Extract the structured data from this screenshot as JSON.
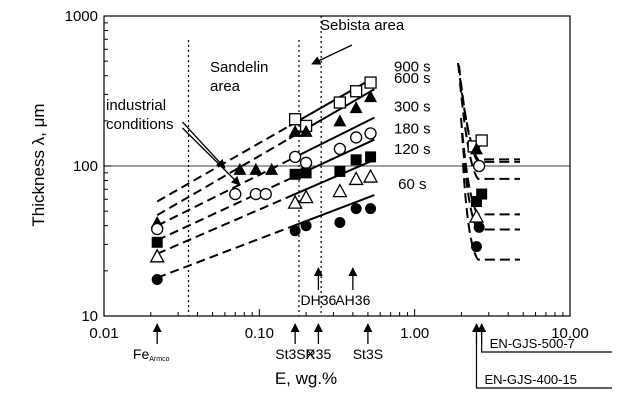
{
  "chart_data": {
    "type": "scatter",
    "xscale": "log",
    "yscale": "log",
    "xlim": [
      0.01,
      10
    ],
    "ylim": [
      10,
      1000
    ],
    "xlabel": "E, wg.%",
    "ylabel": "Thickness λ, μm",
    "x_ticks": [
      "0.01",
      "0.10",
      "1.00",
      "10.00"
    ],
    "y_ticks": [
      "10",
      "100",
      "1000"
    ],
    "grid": "horizontal line at 100",
    "legend": "none",
    "regions": {
      "sandelin": {
        "label_line1": "Sandelin",
        "label_line2": "area",
        "x_boundaries": [
          0.035,
          0.18
        ]
      },
      "sebista": {
        "label": "Sebista area",
        "x_boundary": 0.25
      }
    },
    "industrial_conditions": {
      "line1": "industrial",
      "line2": "conditions"
    },
    "series": [
      {
        "name": "900 s",
        "marker": "open-square",
        "x": [
          0.17,
          0.2,
          0.33,
          0.42,
          0.52
        ],
        "y": [
          205,
          185,
          265,
          315,
          360
        ],
        "line": {
          "x1": 0.022,
          "y1": 58,
          "x2": 0.55,
          "y2": 390
        },
        "gjs": {
          "x": [
            2.4,
            2.7
          ],
          "y": [
            135,
            148
          ]
        }
      },
      {
        "name": "600 s",
        "marker": "filled-triangle",
        "x": [
          0.022,
          0.075,
          0.095,
          0.12,
          0.17,
          0.2,
          0.33,
          0.42,
          0.52
        ],
        "y": [
          42,
          95,
          95,
          95,
          170,
          170,
          200,
          245,
          290
        ],
        "line": {
          "x1": 0.022,
          "y1": 47,
          "x2": 0.55,
          "y2": 325
        },
        "gjs": {
          "x": [
            2.5
          ],
          "y": [
            130
          ]
        }
      },
      {
        "name": "300 s",
        "marker": "open-circle",
        "x": [
          0.022,
          0.07,
          0.095,
          0.11,
          0.17,
          0.2,
          0.33,
          0.42,
          0.52
        ],
        "y": [
          38,
          65,
          65,
          65,
          115,
          105,
          130,
          155,
          165
        ],
        "line": {
          "x1": 0.022,
          "y1": 40,
          "x2": 0.55,
          "y2": 210
        },
        "gjs": {
          "x": [
            2.6
          ],
          "y": [
            100
          ]
        }
      },
      {
        "name": "180 s",
        "marker": "filled-square",
        "x": [
          0.022,
          0.17,
          0.2,
          0.33,
          0.42,
          0.52
        ],
        "y": [
          31,
          88,
          90,
          92,
          110,
          115
        ],
        "line": {
          "x1": 0.022,
          "y1": 32,
          "x2": 0.55,
          "y2": 150
        },
        "gjs": {
          "x": [
            2.5,
            2.7
          ],
          "y": [
            58,
            65
          ]
        }
      },
      {
        "name": "120 s",
        "marker": "open-triangle",
        "x": [
          0.022,
          0.17,
          0.2,
          0.33,
          0.42,
          0.52
        ],
        "y": [
          25,
          57,
          62,
          68,
          82,
          85
        ],
        "line": {
          "x1": 0.022,
          "y1": 26,
          "x2": 0.55,
          "y2": 110
        },
        "gjs": {
          "x": [
            2.5
          ],
          "y": [
            46
          ]
        }
      },
      {
        "name": "60 s",
        "marker": "filled-circle",
        "x": [
          0.022,
          0.17,
          0.2,
          0.33,
          0.42,
          0.52
        ],
        "y": [
          17.5,
          37,
          40,
          42,
          52,
          52
        ],
        "line": {
          "x1": 0.022,
          "y1": 18,
          "x2": 0.55,
          "y2": 64
        },
        "gjs": {
          "x": [
            2.5,
            2.6
          ],
          "y": [
            29,
            39
          ]
        }
      }
    ],
    "material_arrows": [
      {
        "label": "Fe",
        "subscript": "Armco",
        "x": 0.022,
        "position": "below-axis"
      },
      {
        "label": "St3SX",
        "x": 0.17,
        "position": "below-axis"
      },
      {
        "label": "R35",
        "x": 0.24,
        "position": "below-axis"
      },
      {
        "label": "St3S",
        "x": 0.5,
        "position": "below-axis"
      },
      {
        "label": "DH36",
        "x": 0.24,
        "position": "inside"
      },
      {
        "label": "AH36",
        "x": 0.4,
        "position": "inside"
      },
      {
        "label": "EN-GJS-500-7",
        "x": 2.7,
        "position": "bracket-upper"
      },
      {
        "label": "EN-GJS-400-15",
        "x": 2.5,
        "position": "bracket-lower"
      }
    ]
  }
}
